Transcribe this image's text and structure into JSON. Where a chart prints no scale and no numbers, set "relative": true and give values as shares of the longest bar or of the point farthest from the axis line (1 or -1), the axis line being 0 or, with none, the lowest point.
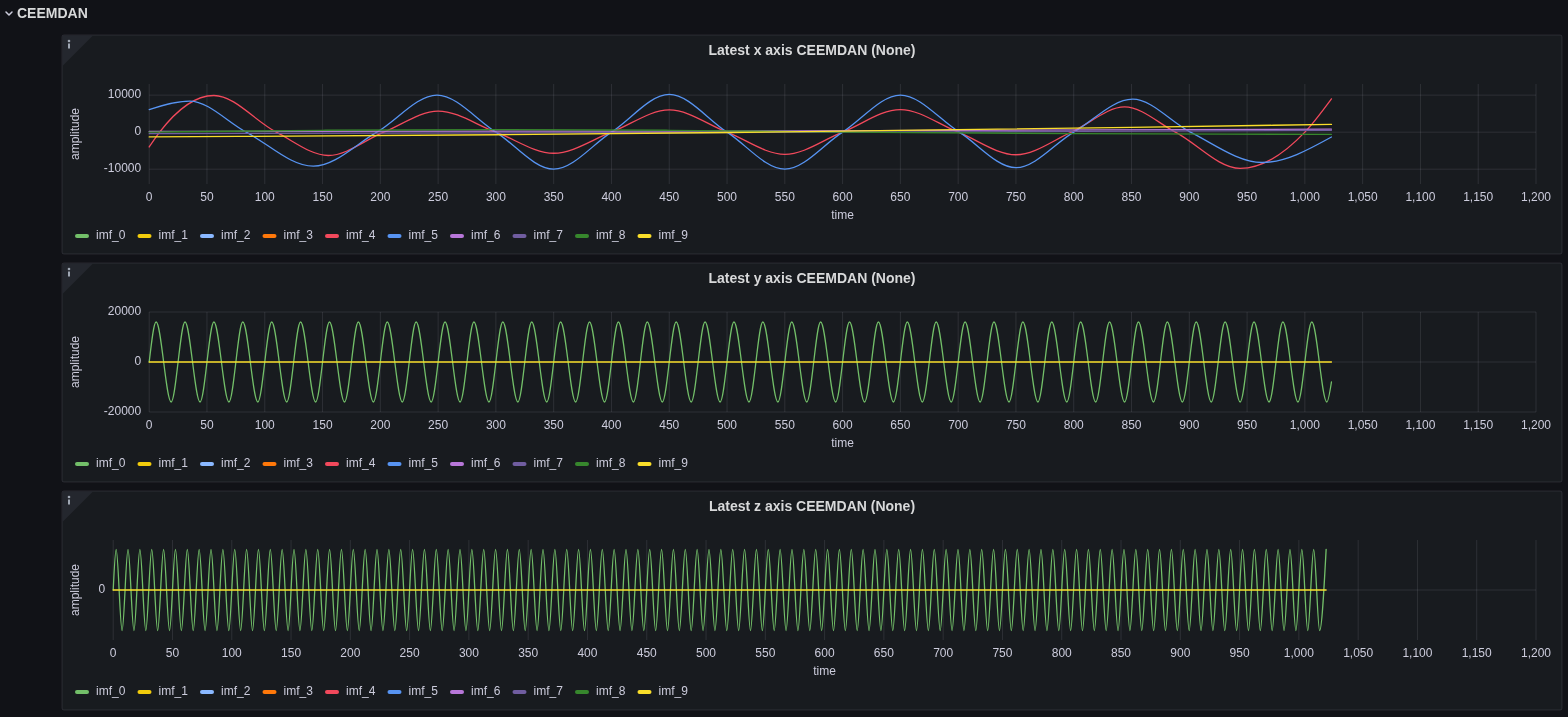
{
  "chart_data": [
    {
      "type": "line",
      "title": "Latest x axis CEEMDAN (None)",
      "xlabel": "time",
      "ylabel": "amplitude",
      "annotations": [
        "CEEMDAN"
      ],
      "xlim": [
        0,
        1200
      ],
      "ylim": [
        -14000,
        13000
      ],
      "xticks": [
        0,
        50,
        100,
        150,
        200,
        250,
        300,
        350,
        400,
        450,
        500,
        550,
        600,
        650,
        700,
        750,
        800,
        850,
        900,
        950,
        {
          "value": 1000,
          "label": "1,000"
        },
        {
          "value": 1050,
          "label": "1,050"
        },
        {
          "value": 1100,
          "label": "1,100"
        },
        {
          "value": 1150,
          "label": "1,150"
        },
        {
          "value": 1200,
          "label": "1,200"
        }
      ],
      "yticks": [
        -10000,
        0,
        10000
      ],
      "grid": true,
      "legend": "bottom left",
      "series": [
        {
          "name": "imf_0",
          "color": "#73bf69"
        },
        {
          "name": "imf_1",
          "color": "#f2cc0c"
        },
        {
          "name": "imf_2",
          "color": "#8ab8ff"
        },
        {
          "name": "imf_3",
          "color": "#ff780a"
        },
        {
          "name": "imf_4",
          "color": "#f2495c",
          "x": [
            0,
            9,
            56,
            110,
            155,
            203,
            250,
            300,
            350,
            400,
            450,
            500,
            550,
            600,
            650,
            700,
            750,
            798,
            844,
            888,
            944,
            1000,
            1023
          ],
          "values": [
            -4000,
            0,
            9900,
            0,
            -6300,
            0,
            5700,
            0,
            -5700,
            0,
            6000,
            0,
            -6000,
            0,
            6100,
            0,
            -6100,
            0,
            6800,
            0,
            -9800,
            0,
            9000
          ]
        },
        {
          "name": "imf_5",
          "color": "#5794f2",
          "x": [
            0,
            35,
            84,
            142,
            197,
            249,
            300,
            350,
            400,
            450,
            500,
            550,
            600,
            650,
            701,
            750,
            800,
            851,
            901,
            963,
            1023
          ],
          "values": [
            6100,
            8400,
            0,
            -9200,
            0,
            10000,
            0,
            -10000,
            0,
            10200,
            0,
            -10000,
            0,
            10000,
            0,
            -9600,
            0,
            8900,
            0,
            -8200,
            -1300
          ]
        },
        {
          "name": "imf_6",
          "color": "#b877d9",
          "x": [
            0,
            500,
            1023
          ],
          "values": [
            200,
            300,
            800
          ]
        },
        {
          "name": "imf_7",
          "color": "#705da0",
          "x": [
            0,
            500,
            1023
          ],
          "values": [
            -400,
            -100,
            500
          ]
        },
        {
          "name": "imf_8",
          "color": "#37872d",
          "x": [
            0,
            150,
            300,
            450,
            600,
            800,
            1023
          ],
          "values": [
            0,
            500,
            700,
            500,
            0,
            -400,
            -600
          ]
        },
        {
          "name": "imf_9",
          "color": "#fade2a",
          "x": [
            0,
            300,
            500,
            600,
            850,
            1023
          ],
          "values": [
            -1300,
            -700,
            -100,
            300,
            1300,
            2100
          ]
        }
      ]
    },
    {
      "type": "line",
      "title": "Latest y axis CEEMDAN (None)",
      "xlabel": "time",
      "ylabel": "amplitude",
      "xlim": [
        0,
        1200
      ],
      "ylim": [
        -20000,
        20000
      ],
      "xticks": [
        0,
        50,
        100,
        150,
        200,
        250,
        300,
        350,
        400,
        450,
        500,
        550,
        600,
        650,
        700,
        750,
        800,
        850,
        900,
        950,
        {
          "value": 1000,
          "label": "1,000"
        },
        {
          "value": 1050,
          "label": "1,050"
        },
        {
          "value": 1100,
          "label": "1,100"
        },
        {
          "value": 1150,
          "label": "1,150"
        },
        {
          "value": 1200,
          "label": "1,200"
        }
      ],
      "yticks": [
        -20000,
        0,
        20000
      ],
      "grid": true,
      "legend": "bottom left",
      "series": [
        {
          "name": "imf_0",
          "color": "#73bf69",
          "x": [
            0,
            6,
            19,
            31,
            44,
            56,
            69,
            81,
            94,
            106,
            119,
            131,
            144,
            156,
            169,
            181,
            194,
            206,
            219,
            231,
            244,
            256,
            269,
            281,
            294,
            306,
            319,
            331,
            344,
            356,
            369,
            381,
            394,
            406,
            419,
            431,
            444,
            456,
            469,
            481,
            494,
            506,
            519,
            531,
            544,
            556,
            569,
            581,
            594,
            606,
            619,
            631,
            644,
            656,
            669,
            681,
            694,
            706,
            719,
            731,
            744,
            756,
            769,
            781,
            794,
            806,
            819,
            831,
            844,
            856,
            869,
            881,
            894,
            906,
            919,
            931,
            944,
            956,
            969,
            981,
            994,
            1006,
            1019,
            1023
          ],
          "values": [
            0,
            16000,
            -16000,
            16000,
            -16000,
            16000,
            -16000,
            16000,
            -16000,
            16000,
            -16000,
            16000,
            -16000,
            16000,
            -16000,
            16000,
            -16000,
            16000,
            -16000,
            16000,
            -16000,
            16000,
            -16000,
            16000,
            -16000,
            16000,
            -16000,
            16000,
            -16000,
            16000,
            -16000,
            16000,
            -16000,
            16000,
            -16000,
            16000,
            -16000,
            16000,
            -16000,
            16000,
            -16000,
            16000,
            -16000,
            16000,
            -16000,
            16000,
            -16000,
            16000,
            -16000,
            16000,
            -16000,
            16000,
            -16000,
            16000,
            -16000,
            16000,
            -16000,
            16000,
            -16000,
            16000,
            -16000,
            16000,
            -16000,
            16000,
            -16000,
            16000,
            -16000,
            16000,
            -16000,
            16000,
            -16000,
            16000,
            -16000,
            16000,
            -16000,
            16000,
            -16000,
            16000,
            -16000,
            16000,
            -16000,
            16000,
            -16000,
            -8000
          ]
        },
        {
          "name": "imf_1",
          "color": "#f2cc0c"
        },
        {
          "name": "imf_2",
          "color": "#8ab8ff"
        },
        {
          "name": "imf_3",
          "color": "#ff780a"
        },
        {
          "name": "imf_4",
          "color": "#f2495c"
        },
        {
          "name": "imf_5",
          "color": "#5794f2"
        },
        {
          "name": "imf_6",
          "color": "#b877d9"
        },
        {
          "name": "imf_7",
          "color": "#705da0"
        },
        {
          "name": "imf_8",
          "color": "#37872d"
        },
        {
          "name": "imf_9",
          "color": "#fade2a",
          "x": [
            0,
            1023
          ],
          "values": [
            0,
            0
          ]
        }
      ]
    },
    {
      "type": "line",
      "title": "Latest z axis CEEMDAN (None)",
      "xlabel": "time",
      "ylabel": "amplitude",
      "relative": true,
      "xlim": [
        0,
        1200
      ],
      "xticks": [
        0,
        50,
        100,
        150,
        200,
        250,
        300,
        350,
        400,
        450,
        500,
        550,
        600,
        650,
        700,
        750,
        800,
        850,
        900,
        950,
        {
          "value": 1000,
          "label": "1,000"
        },
        {
          "value": 1050,
          "label": "1,050"
        },
        {
          "value": 1100,
          "label": "1,100"
        },
        {
          "value": 1150,
          "label": "1,150"
        },
        {
          "value": 1200,
          "label": "1,200"
        }
      ],
      "ref_lines": [
        {
          "axis": "y",
          "value": 0,
          "label": "0"
        }
      ],
      "grid": true,
      "legend": "bottom left",
      "series": [
        {
          "name": "imf_0",
          "color": "#73bf69",
          "x": [
            0,
            2.5,
            7.5,
            12.5,
            17.5,
            22.5,
            27.5,
            32.5,
            37.5,
            42.5,
            47.5,
            52.5,
            57.5,
            62.5,
            67.5,
            72.5,
            77.5,
            82.5,
            87.5,
            92.5,
            97.5,
            102.5,
            107.5,
            112.5,
            117.5,
            122.5,
            127.5,
            132.5,
            137.5,
            142.5,
            147.5,
            152.5,
            157.5,
            162.5,
            167.5,
            172.5,
            177.5,
            182.5,
            187.5,
            192.5,
            197.5,
            202.5,
            207.5,
            212.5,
            217.5,
            222.5,
            227.5,
            232.5,
            237.5,
            242.5,
            247.5,
            252.5,
            257.5,
            262.5,
            267.5,
            272.5,
            277.5,
            282.5,
            287.5,
            292.5,
            297.5,
            302.5,
            307.5,
            312.5,
            317.5,
            322.5,
            327.5,
            332.5,
            337.5,
            342.5,
            347.5,
            352.5,
            357.5,
            362.5,
            367.5,
            372.5,
            377.5,
            382.5,
            387.5,
            392.5,
            397.5,
            402.5,
            407.5,
            412.5,
            417.5,
            422.5,
            427.5,
            432.5,
            437.5,
            442.5,
            447.5,
            452.5,
            457.5,
            462.5,
            467.5,
            472.5,
            477.5,
            482.5,
            487.5,
            492.5,
            497.5,
            502.5,
            507.5,
            512.5,
            517.5,
            522.5,
            527.5,
            532.5,
            537.5,
            542.5,
            547.5,
            552.5,
            557.5,
            562.5,
            567.5,
            572.5,
            577.5,
            582.5,
            587.5,
            592.5,
            597.5,
            602.5,
            607.5,
            612.5,
            617.5,
            622.5,
            627.5,
            632.5,
            637.5,
            642.5,
            647.5,
            652.5,
            657.5,
            662.5,
            667.5,
            672.5,
            677.5,
            682.5,
            687.5,
            692.5,
            697.5,
            702.5,
            707.5,
            712.5,
            717.5,
            722.5,
            727.5,
            732.5,
            737.5,
            742.5,
            747.5,
            752.5,
            757.5,
            762.5,
            767.5,
            772.5,
            777.5,
            782.5,
            787.5,
            792.5,
            797.5,
            802.5,
            807.5,
            812.5,
            817.5,
            822.5,
            827.5,
            832.5,
            837.5,
            842.5,
            847.5,
            852.5,
            857.5,
            862.5,
            867.5,
            872.5,
            877.5,
            882.5,
            887.5,
            892.5,
            897.5,
            902.5,
            907.5,
            912.5,
            917.5,
            922.5,
            927.5,
            932.5,
            937.5,
            942.5,
            947.5,
            952.5,
            957.5,
            962.5,
            967.5,
            972.5,
            977.5,
            982.5,
            987.5,
            992.5,
            997.5,
            1002.5,
            1007.5,
            1012.5,
            1017.5,
            1023
          ],
          "values": [
            0,
            1,
            -1,
            1,
            -1,
            1,
            -1,
            1,
            -1,
            1,
            -1,
            1,
            -1,
            1,
            -1,
            1,
            -1,
            1,
            -1,
            1,
            -1,
            1,
            -1,
            1,
            -1,
            1,
            -1,
            1,
            -1,
            1,
            -1,
            1,
            -1,
            1,
            -1,
            1,
            -1,
            1,
            -1,
            1,
            -1,
            1,
            -1,
            1,
            -1,
            1,
            -1,
            1,
            -1,
            1,
            -1,
            1,
            -1,
            1,
            -1,
            1,
            -1,
            1,
            -1,
            1,
            -1,
            1,
            -1,
            1,
            -1,
            1,
            -1,
            1,
            -1,
            1,
            -1,
            1,
            -1,
            1,
            -1,
            1,
            -1,
            1,
            -1,
            1,
            -1,
            1,
            -1,
            1,
            -1,
            1,
            -1,
            1,
            -1,
            1,
            -1,
            1,
            -1,
            1,
            -1,
            1,
            -1,
            1,
            -1,
            1,
            -1,
            1,
            -1,
            1,
            -1,
            1,
            -1,
            1,
            -1,
            1,
            -1,
            1,
            -1,
            1,
            -1,
            1,
            -1,
            1,
            -1,
            1,
            -1,
            1,
            -1,
            1,
            -1,
            1,
            -1,
            1,
            -1,
            1,
            -1,
            1,
            -1,
            1,
            -1,
            1,
            -1,
            1,
            -1,
            1,
            -1,
            1,
            -1,
            1,
            -1,
            1,
            -1,
            1,
            -1,
            1,
            -1,
            1,
            -1,
            1,
            -1,
            1,
            -1,
            1,
            -1,
            1,
            -1,
            1,
            -1,
            1,
            -1,
            1,
            -1,
            1,
            -1,
            1,
            -1,
            1,
            -1,
            1,
            -1,
            1,
            -1,
            1,
            -1,
            1,
            -1,
            1,
            -1,
            1,
            -1,
            1,
            -1,
            1,
            -1,
            1,
            -1,
            1,
            -1,
            1,
            -1,
            1,
            -1,
            1,
            -1,
            1,
            -1,
            1,
            -1,
            1,
            -1,
            1
          ]
        },
        {
          "name": "imf_1",
          "color": "#f2cc0c"
        },
        {
          "name": "imf_2",
          "color": "#8ab8ff"
        },
        {
          "name": "imf_3",
          "color": "#ff780a"
        },
        {
          "name": "imf_4",
          "color": "#f2495c"
        },
        {
          "name": "imf_5",
          "color": "#5794f2"
        },
        {
          "name": "imf_6",
          "color": "#b877d9"
        },
        {
          "name": "imf_7",
          "color": "#705da0"
        },
        {
          "name": "imf_8",
          "color": "#37872d"
        },
        {
          "name": "imf_9",
          "color": "#fade2a",
          "x": [
            0,
            1023
          ],
          "values": [
            0,
            0
          ]
        }
      ]
    }
  ]
}
